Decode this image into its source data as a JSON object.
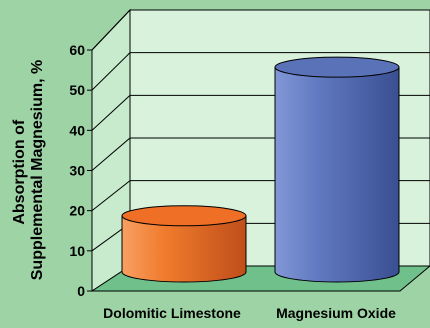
{
  "colors": {
    "background": "#9ed3a6",
    "plot_wall": "#d9f2dc",
    "floor": "#6fc08a",
    "dolomitic": "#ee6f25",
    "magnesium_oxide": "#5a72b8"
  },
  "chart_data": {
    "type": "bar",
    "three_d": true,
    "categories": [
      "Dolomitic Limestone",
      "Magnesium Oxide"
    ],
    "values": [
      14,
      51
    ],
    "ylabel_line1": "Absorption of",
    "ylabel_line2": "Supplemental Magnesium, %",
    "ylim": [
      0,
      60
    ],
    "yticks": [
      "0",
      "10",
      "20",
      "30",
      "40",
      "50",
      "60"
    ],
    "grid": true,
    "legend": "none"
  }
}
